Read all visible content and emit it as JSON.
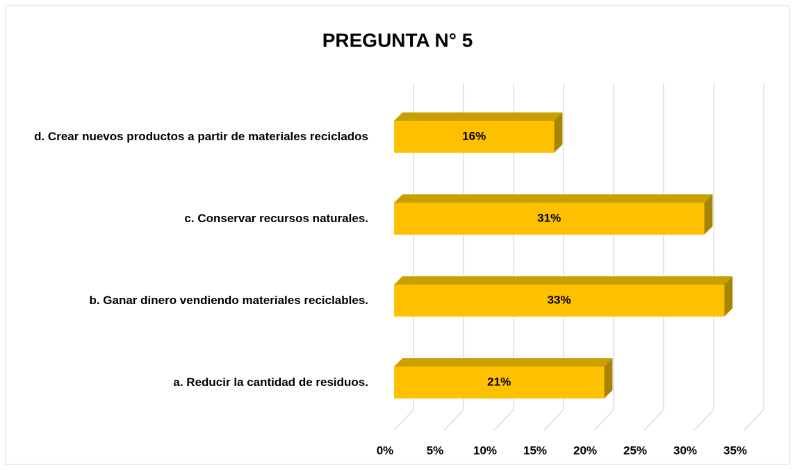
{
  "chart_data": {
    "type": "bar3d",
    "orientation": "horizontal",
    "title": "PREGUNTA N° 5",
    "categories": [
      "a. Reducir la cantidad de residuos.",
      "b. Ganar dinero vendiendo materiales reciclables.",
      "c. Conservar recursos naturales.",
      "d. Crear nuevos productos a partir de materiales reciclados"
    ],
    "values": [
      21,
      33,
      31,
      16
    ],
    "value_labels": [
      "21%",
      "33%",
      "31%",
      "16%"
    ],
    "color": "#FFC000",
    "xlim": [
      0,
      35
    ],
    "xticks": [
      {
        "value": 0,
        "label": "0%"
      },
      {
        "value": 5,
        "label": "5%"
      },
      {
        "value": 10,
        "label": "10%"
      },
      {
        "value": 15,
        "label": "15%"
      },
      {
        "value": 20,
        "label": "20%"
      },
      {
        "value": 25,
        "label": "25%"
      },
      {
        "value": 30,
        "label": "30%"
      },
      {
        "value": 35,
        "label": "35%"
      }
    ],
    "grid": true
  }
}
